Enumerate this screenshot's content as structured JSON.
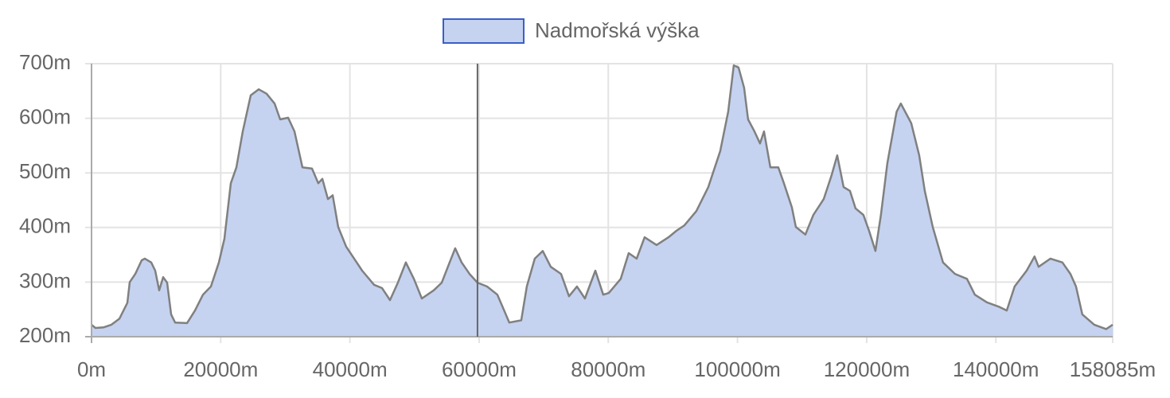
{
  "chart_data": {
    "type": "area",
    "series": [
      {
        "name": "Nadmořská výška",
        "color": "#c5d3f0",
        "line_color": "#808080",
        "legend_border": "#3a5fc8",
        "values": [
          222,
          216,
          217,
          222,
          233,
          262,
          300,
          315,
          340,
          343,
          336,
          321,
          285,
          309,
          299,
          241,
          226,
          225,
          248,
          277,
          292,
          336,
          379,
          481,
          510,
          576,
          642,
          653,
          645,
          627,
          598,
          601,
          576,
          510,
          508,
          481,
          489,
          452,
          459,
          401,
          365,
          343,
          321,
          295,
          289,
          267,
          299,
          336,
          306,
          270,
          285,
          299,
          336,
          362,
          336,
          315,
          299,
          292,
          277,
          226,
          230,
          292,
          343,
          357,
          328,
          315,
          274,
          292,
          270,
          321,
          277,
          280,
          306,
          353,
          343,
          382,
          368,
          382,
          394,
          404,
          430,
          474,
          540,
          612,
          697,
          693,
          656,
          598,
          576,
          554,
          576,
          510,
          510,
          481,
          437,
          401,
          387,
          423,
          452,
          496,
          532,
          474,
          467,
          435,
          423,
          394,
          357,
          423,
          518,
          612,
          627,
          591,
          532,
          467,
          401,
          336,
          315,
          306,
          277,
          263,
          255,
          248,
          292,
          321,
          347,
          328,
          343,
          336,
          315,
          292,
          241,
          222,
          214,
          222
        ]
      }
    ],
    "x": [
      0,
      600,
      1850,
      3080,
      4310,
      5540,
      5910,
      6780,
      7760,
      8250,
      9240,
      9860,
      10470,
      11090,
      11700,
      12320,
      12940,
      14780,
      16020,
      17250,
      18480,
      19710,
      20570,
      21560,
      22420,
      23410,
      24640,
      25870,
      27100,
      28340,
      29200,
      30430,
      31420,
      32650,
      34130,
      35110,
      35730,
      36590,
      37330,
      38190,
      39420,
      40660,
      41890,
      43740,
      44970,
      46200,
      47430,
      48660,
      49900,
      51130,
      52980,
      54210,
      55440,
      56300,
      57290,
      58520,
      59750,
      61230,
      62830,
      64680,
      66530,
      67390,
      68620,
      69850,
      71090,
      72690,
      73920,
      75150,
      76380,
      77990,
      79220,
      80080,
      81930,
      83160,
      84390,
      85620,
      87470,
      89320,
      90550,
      91780,
      93630,
      95480,
      97330,
      98560,
      99420,
      100160,
      101020,
      101640,
      102630,
      103490,
      104100,
      105090,
      106320,
      107180,
      108420,
      109030,
      110510,
      111740,
      113340,
      114580,
      115440,
      116420,
      117410,
      118270,
      119500,
      120370,
      121350,
      122210,
      123200,
      124630,
      125290,
      126900,
      128130,
      128990,
      130220,
      131820,
      133670,
      135520,
      136750,
      138600,
      140450,
      141680,
      142910,
      144760,
      145990,
      146610,
      148450,
      150300,
      151540,
      152400,
      153380,
      155230,
      157080,
      158085
    ],
    "xlim": [
      0,
      158085
    ],
    "xticks": [
      {
        "value": 0,
        "label": "0m"
      },
      {
        "value": 20000,
        "label": "20000m"
      },
      {
        "value": 40000,
        "label": "40000m"
      },
      {
        "value": 60000,
        "label": "60000m"
      },
      {
        "value": 80000,
        "label": "80000m"
      },
      {
        "value": 100000,
        "label": "100000m"
      },
      {
        "value": 120000,
        "label": "120000m"
      },
      {
        "value": 140000,
        "label": "140000m"
      },
      {
        "value": 158085,
        "label": "158085m"
      }
    ],
    "ylim": [
      200,
      700
    ],
    "yticks": [
      {
        "value": 200,
        "label": "200m"
      },
      {
        "value": 300,
        "label": "300m"
      },
      {
        "value": 400,
        "label": "400m"
      },
      {
        "value": 500,
        "label": "500m"
      },
      {
        "value": 600,
        "label": "600m"
      },
      {
        "value": 700,
        "label": "700m"
      }
    ],
    "grid": true,
    "crosshair_x": 59750,
    "legend": "top"
  }
}
